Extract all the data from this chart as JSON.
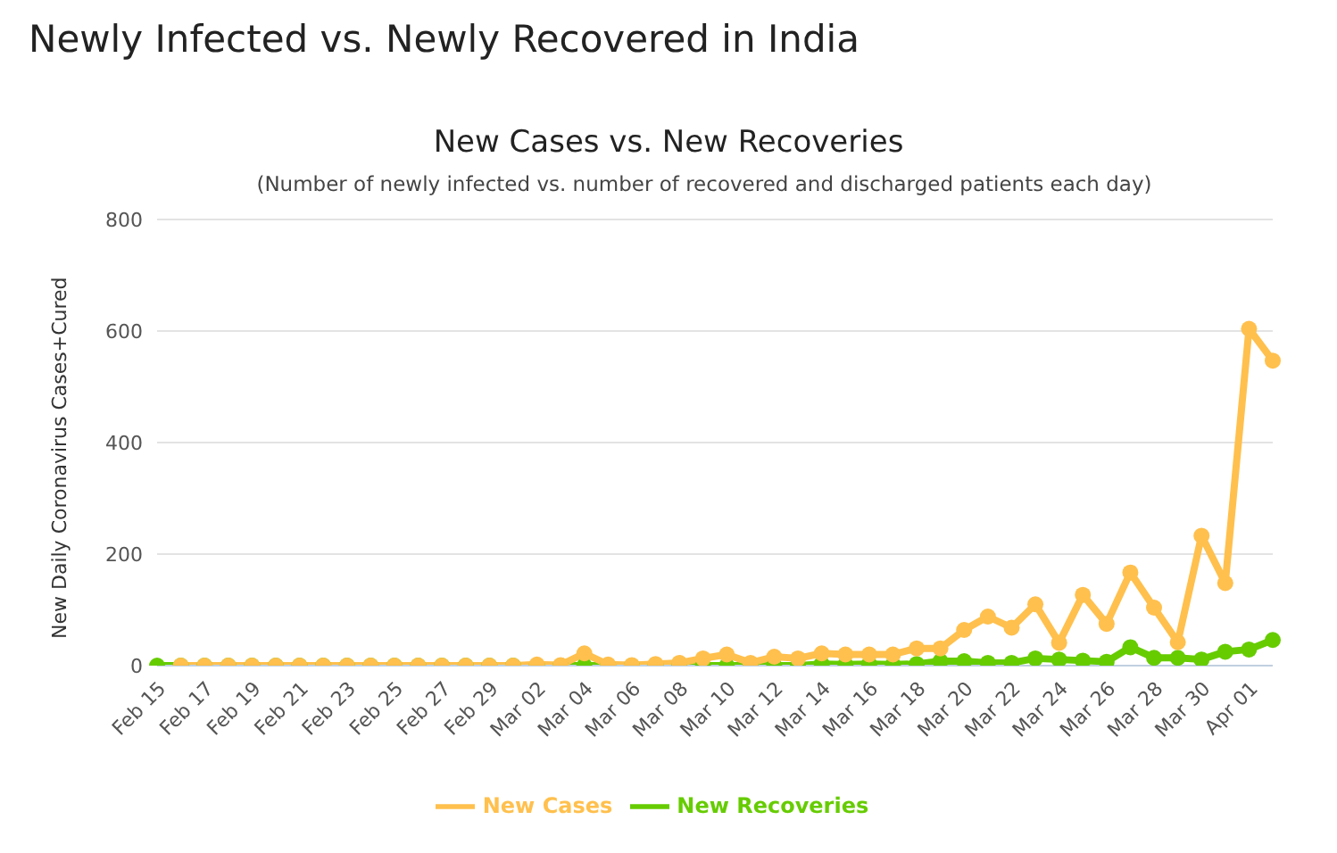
{
  "chart_data": {
    "type": "line",
    "title": "Newly Infected vs. Newly Recovered in India",
    "subtitle": "New Cases vs. New Recoveries",
    "annotations": [
      "(Number of newly infected vs. number of recovered and discharged patients each day)"
    ],
    "ylabel": "New Daily Coronavirus Cases+Cured",
    "categories": [
      "Feb 15",
      null,
      "Feb 17",
      null,
      "Feb 19",
      null,
      "Feb 21",
      null,
      "Feb 23",
      null,
      "Feb 25",
      null,
      "Feb 27",
      null,
      "Feb 29",
      null,
      "Mar 02",
      null,
      "Mar 04",
      null,
      "Mar 06",
      null,
      "Mar 08",
      null,
      "Mar 10",
      null,
      "Mar 12",
      null,
      "Mar 14",
      null,
      "Mar 16",
      null,
      "Mar 18",
      null,
      "Mar 20",
      null,
      "Mar 22",
      null,
      "Mar 24",
      null,
      "Mar 26",
      null,
      "Mar 28",
      null,
      "Mar 30",
      null,
      "Apr 01",
      null
    ],
    "series": [
      {
        "name": "New Recoveries",
        "color": "#66cc00",
        "values": [
          0,
          0,
          0,
          0,
          0,
          0,
          0,
          0,
          0,
          0,
          0,
          0,
          0,
          0,
          0,
          0,
          0,
          0,
          0,
          0,
          0,
          0,
          0,
          0,
          0,
          0,
          0,
          0,
          3,
          2,
          3,
          2,
          3,
          8,
          8,
          5,
          5,
          13,
          11,
          9,
          7,
          33,
          14,
          14,
          11,
          25,
          29,
          46
        ]
      },
      {
        "name": "New Cases",
        "color": "#ffc04d",
        "values": [
          null,
          0,
          0,
          0,
          0,
          0,
          0,
          0,
          0,
          0,
          0,
          0,
          0,
          0,
          0,
          0,
          2,
          1,
          22,
          2,
          1,
          3,
          5,
          13,
          20,
          5,
          16,
          13,
          22,
          20,
          20,
          20,
          31,
          31,
          64,
          88,
          68,
          110,
          41,
          127,
          75,
          167,
          104,
          42,
          233,
          148,
          604,
          547
        ]
      }
    ],
    "ylim": [
      0,
      800
    ],
    "yticks": [
      0,
      200,
      400,
      600,
      800
    ],
    "grid": "y",
    "legend": "bottom",
    "marker": "circle",
    "line_style": "solid"
  }
}
